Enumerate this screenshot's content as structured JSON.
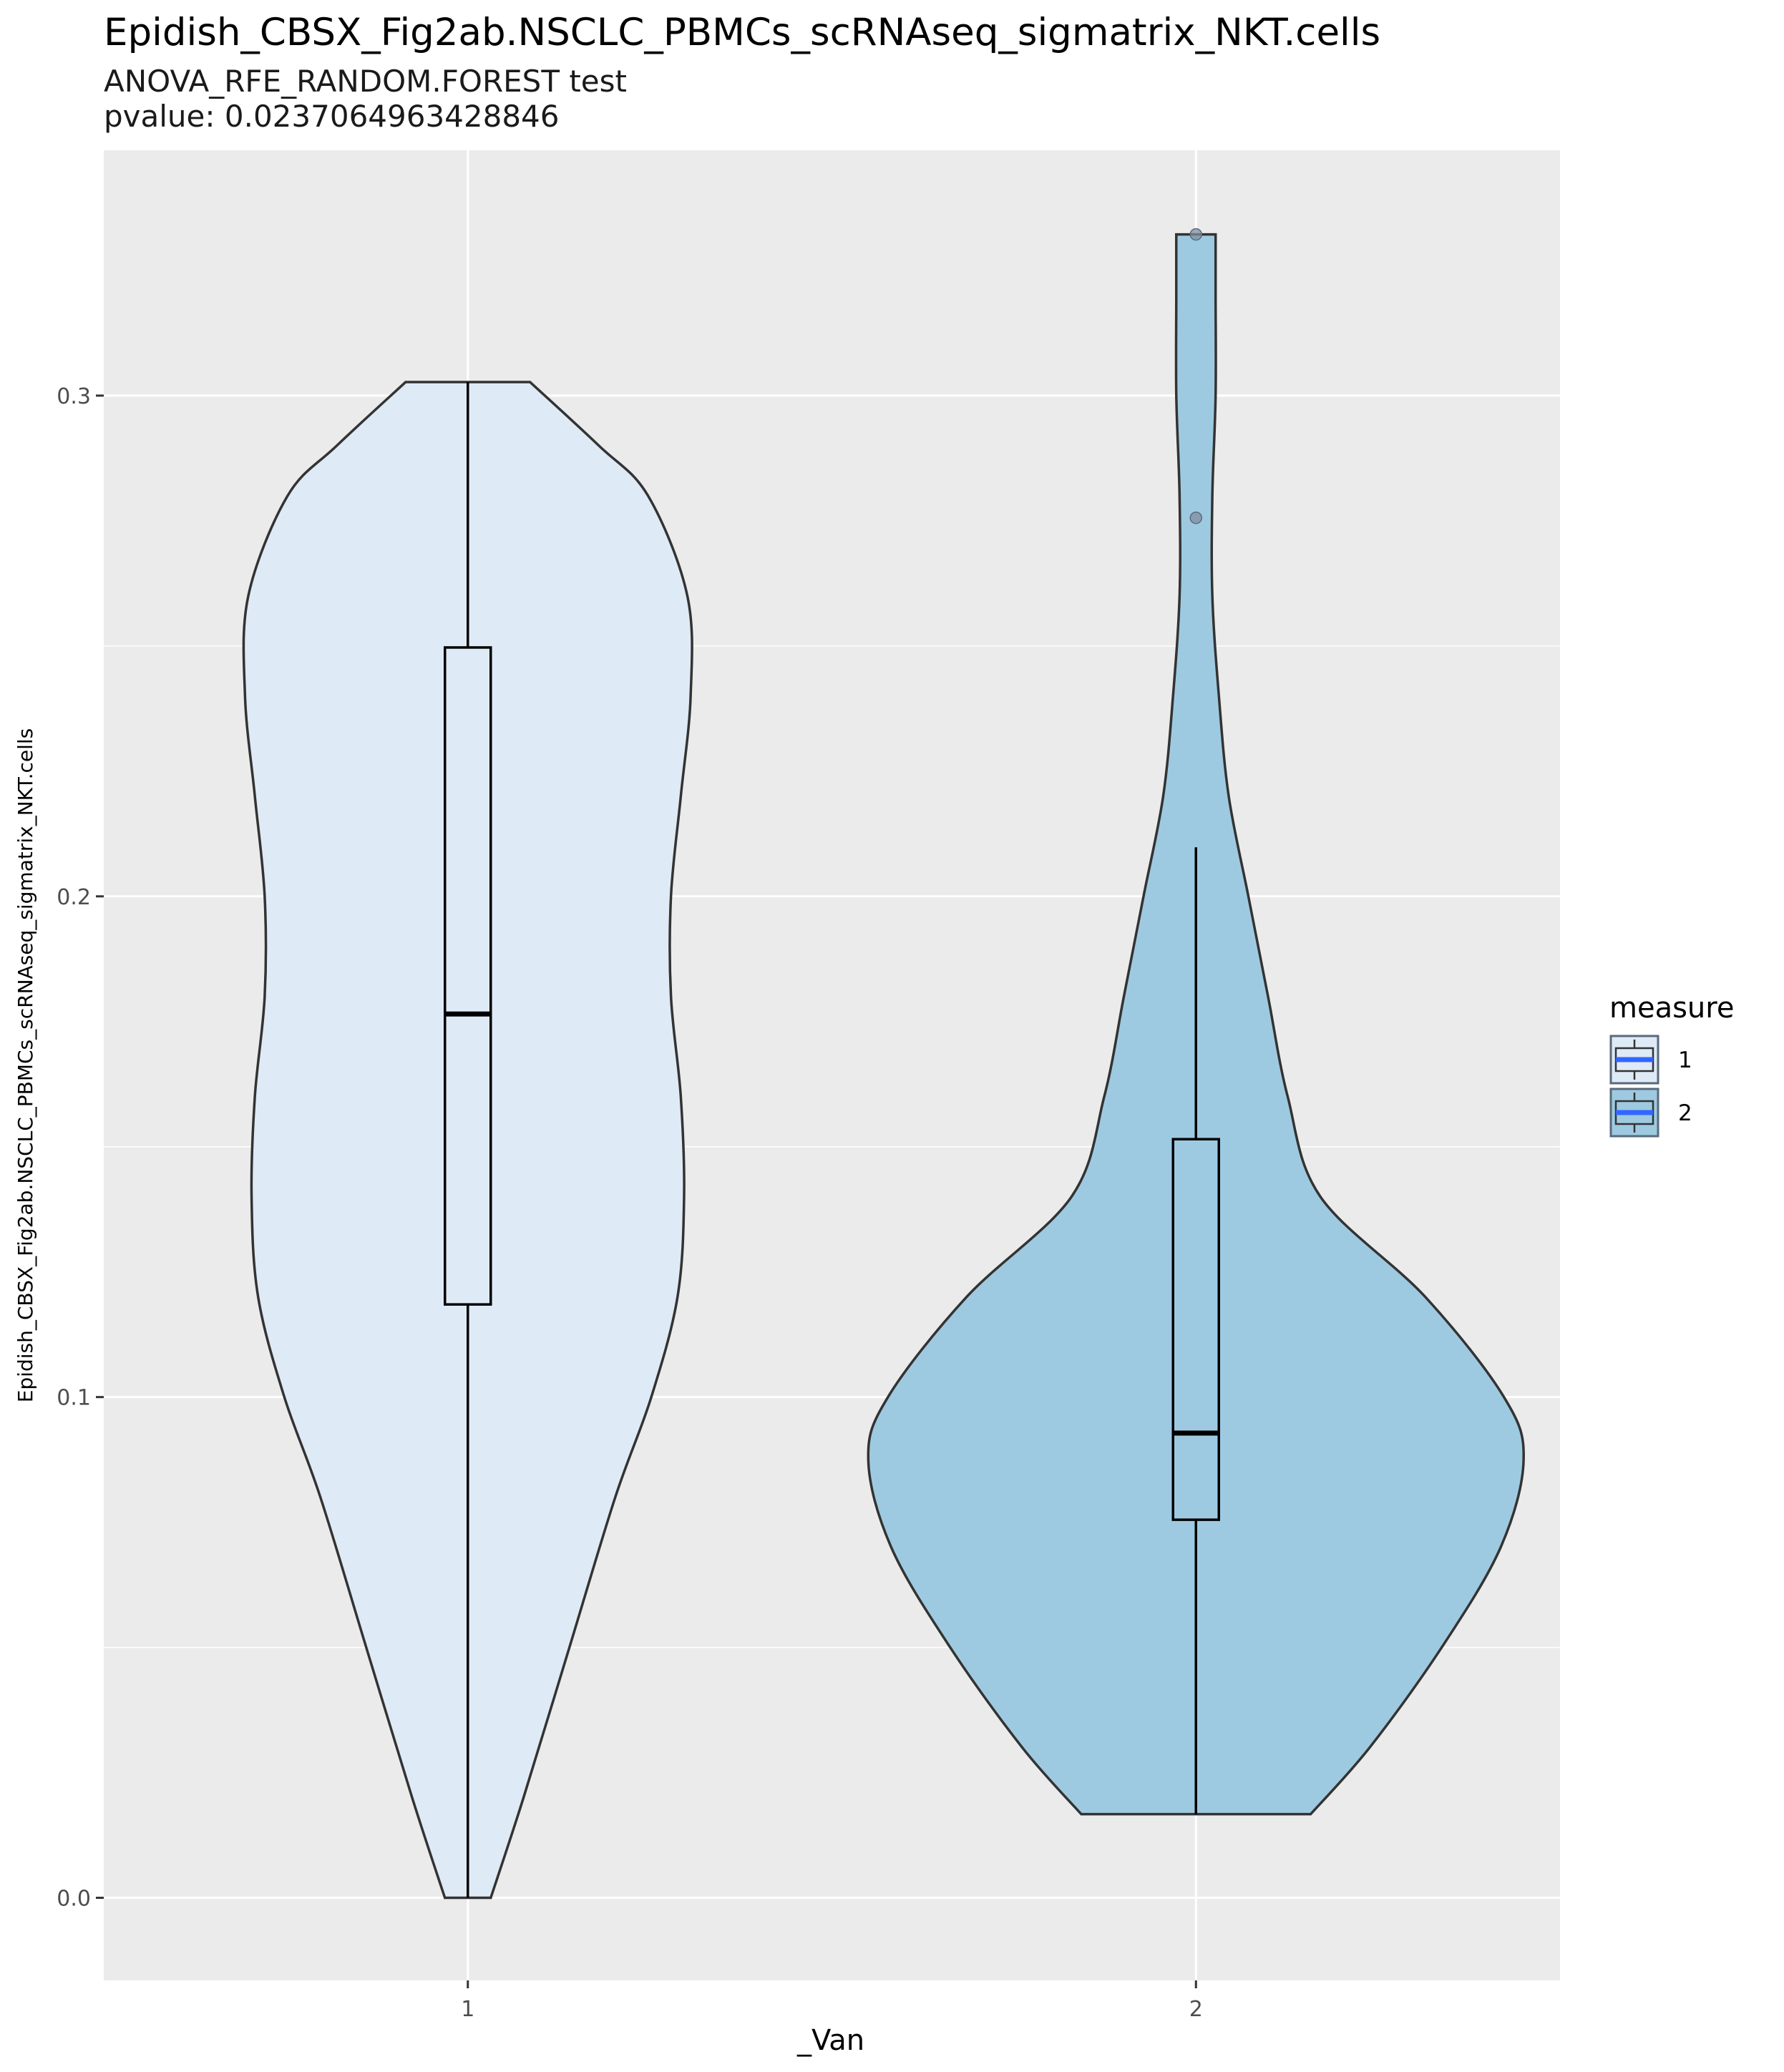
{
  "chart_data": {
    "type": "violin",
    "title": "Epidish_CBSX_Fig2ab.NSCLC_PBMCs_scRNAseq_sigmatrix_NKT.cells",
    "subtitle_lines": [
      "ANOVA_RFE_RANDOM.FOREST test",
      "pvalue: 0.0237064963428846"
    ],
    "xlabel": "_Van",
    "ylabel": "Epidish_CBSX_Fig2ab.NSCLC_PBMCs_scRNAseq_sigmatrix_NKT.cells",
    "categories": [
      "1",
      "2"
    ],
    "ylim": [
      -0.0165,
      0.349
    ],
    "yticks": [
      0.0,
      0.1,
      0.2,
      0.3
    ],
    "ytick_labels": [
      "0.0",
      "0.1",
      "0.2",
      "0.3"
    ],
    "grid": true,
    "legend": {
      "title": "measure",
      "placement": "right",
      "entries": [
        {
          "label": "1",
          "fill": "#deeaf6"
        },
        {
          "label": "2",
          "fill": "#9ecae1"
        }
      ]
    },
    "series": [
      {
        "category": "1",
        "fill": "#deeaf6",
        "box": {
          "min": 0.0,
          "q1": 0.1185,
          "median": 0.1765,
          "q3": 0.2497,
          "max": 0.3027
        },
        "outliers": [],
        "violin_range": [
          0.0,
          0.3027
        ],
        "violin_profile": [
          [
            0.0,
            0.07
          ],
          [
            0.02,
            0.17
          ],
          [
            0.05,
            0.31
          ],
          [
            0.08,
            0.45
          ],
          [
            0.1,
            0.56
          ],
          [
            0.12,
            0.64
          ],
          [
            0.14,
            0.66
          ],
          [
            0.16,
            0.65
          ],
          [
            0.18,
            0.62
          ],
          [
            0.2,
            0.62
          ],
          [
            0.22,
            0.65
          ],
          [
            0.24,
            0.68
          ],
          [
            0.26,
            0.67
          ],
          [
            0.28,
            0.55
          ],
          [
            0.29,
            0.4
          ],
          [
            0.3027,
            0.19
          ]
        ]
      },
      {
        "category": "2",
        "fill": "#9ecae1",
        "box": {
          "min": 0.0167,
          "q1": 0.0755,
          "median": 0.0928,
          "q3": 0.1515,
          "max": 0.2098
        },
        "outliers": [
          0.2756,
          0.3322
        ],
        "violin_range": [
          0.0167,
          0.3322
        ],
        "violin_profile": [
          [
            0.0167,
            0.35
          ],
          [
            0.03,
            0.53
          ],
          [
            0.05,
            0.75
          ],
          [
            0.07,
            0.93
          ],
          [
            0.0875,
            1.0
          ],
          [
            0.1,
            0.94
          ],
          [
            0.12,
            0.7
          ],
          [
            0.14,
            0.38
          ],
          [
            0.16,
            0.28
          ],
          [
            0.18,
            0.22
          ],
          [
            0.2,
            0.16
          ],
          [
            0.22,
            0.1
          ],
          [
            0.24,
            0.07
          ],
          [
            0.26,
            0.05
          ],
          [
            0.28,
            0.05
          ],
          [
            0.3,
            0.06
          ],
          [
            0.32,
            0.06
          ],
          [
            0.3322,
            0.06
          ]
        ]
      }
    ]
  }
}
